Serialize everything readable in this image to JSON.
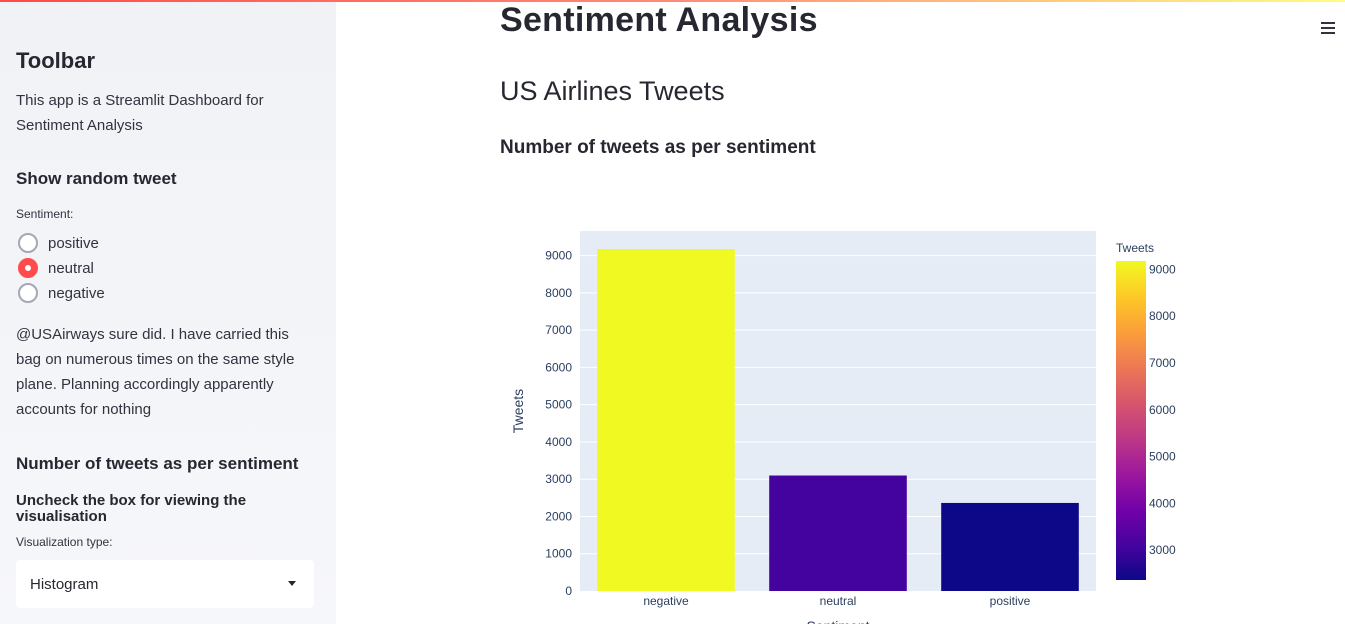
{
  "sidebar": {
    "title": "Toolbar",
    "description": "This app is a Streamlit Dashboard for Sentiment Analysis",
    "random_tweet_heading": "Show random tweet",
    "sentiment_label": "Sentiment:",
    "sentiment_options": [
      {
        "label": "positive",
        "selected": false
      },
      {
        "label": "neutral",
        "selected": true
      },
      {
        "label": "negative",
        "selected": false
      }
    ],
    "tweet_text": "@USAirways sure did. I have carried this bag on numerous times on the same style plane. Planning accordingly apparently accounts for nothing",
    "count_heading": "Number of tweets as per sentiment",
    "uncheck_text": "Uncheck the box for viewing the visualisation",
    "viz_label": "Visualization type:",
    "viz_selected": "Histogram"
  },
  "main": {
    "title": "Sentiment Analysis",
    "subtitle": "US Airlines Tweets",
    "section_heading": "Number of tweets as per sentiment"
  },
  "colors": {
    "accent": "#ff4b4b",
    "plot_bg": "#e5ecf6"
  },
  "icons": {
    "menu": "hamburger-menu-icon",
    "dropdown": "caret-down-icon"
  },
  "chart_data": {
    "type": "bar",
    "categories": [
      "negative",
      "neutral",
      "positive"
    ],
    "values": [
      9178,
      3099,
      2363
    ],
    "xlabel": "Sentiment",
    "ylabel": "Tweets",
    "ylim": [
      0,
      9661
    ],
    "yticks": [
      0,
      1000,
      2000,
      3000,
      4000,
      5000,
      6000,
      7000,
      8000,
      9000
    ],
    "colorbar": {
      "title": "Tweets",
      "range": [
        2363,
        9178
      ],
      "ticks": [
        3000,
        4000,
        5000,
        6000,
        7000,
        8000,
        9000
      ],
      "colorscale": "plasma"
    },
    "grid": true
  }
}
